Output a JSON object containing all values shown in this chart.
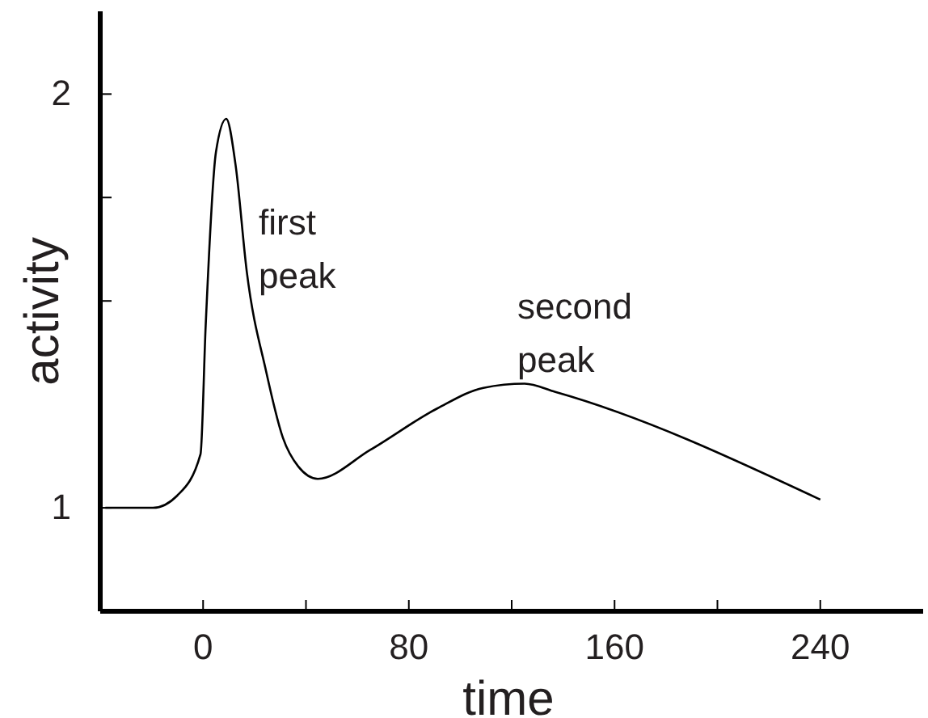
{
  "chart_data": {
    "type": "line",
    "xlabel": "time",
    "ylabel": "activity",
    "x": [
      -38,
      -19.5,
      -10,
      -1,
      1,
      5,
      9,
      12.6,
      17,
      24.5,
      31,
      37,
      44.6,
      65,
      91,
      109,
      125,
      137,
      240
    ],
    "series": [
      {
        "color": "#000000",
        "values": [
          1,
          1,
          1.03,
          1.13,
          1.44,
          1.86,
          1.94,
          1.83,
          1.57,
          1.33,
          1.17,
          1.1,
          1.07,
          1.14,
          1.24,
          1.29,
          1.3,
          1.28,
          1.02
        ]
      }
    ],
    "xlim": [
      -40,
      280
    ],
    "xticks": [
      0,
      {
        "value": 40,
        "label": null
      },
      80,
      {
        "value": 120,
        "label": null
      },
      160,
      {
        "value": 200,
        "label": null
      },
      240
    ],
    "ylim": [
      0.75,
      2.2
    ],
    "yticks": [
      1,
      {
        "value": 1.5,
        "label": null
      },
      {
        "value": 1.75,
        "label": null
      },
      2
    ],
    "annotations": [
      "first\npeak",
      "second\npeak"
    ],
    "grid": false,
    "marker": "none",
    "line_style": "solid"
  }
}
